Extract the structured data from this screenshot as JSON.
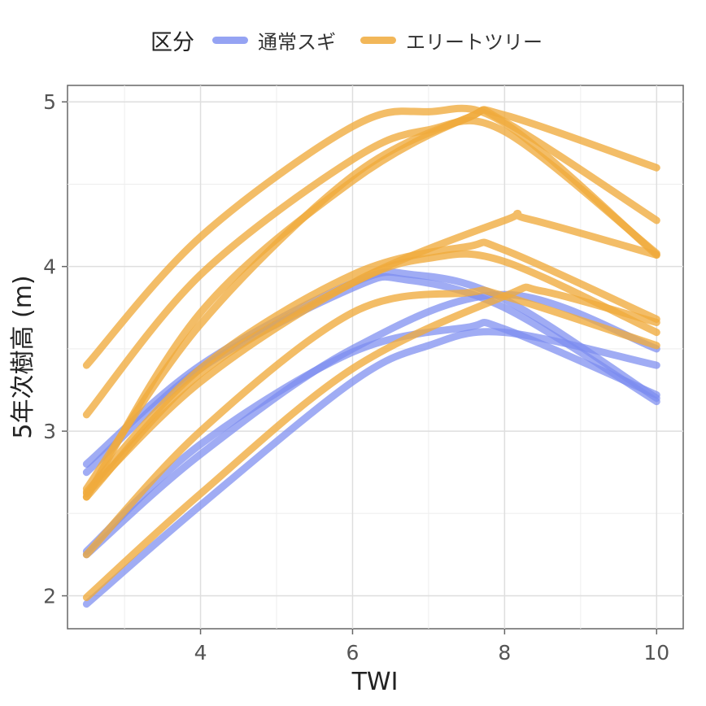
{
  "legend": {
    "title": "区分",
    "items": [
      {
        "label": "通常スギ",
        "color": "#7b8cf0"
      },
      {
        "label": "エリートツリー",
        "color": "#f0aa3c"
      }
    ]
  },
  "chart_data": {
    "type": "line",
    "xlabel": "TWI",
    "ylabel": "5年次樹高 (m)",
    "xlim": [
      2.25,
      10.35
    ],
    "ylim": [
      1.8,
      5.1
    ],
    "xticks": [
      4,
      6,
      8,
      10
    ],
    "yticks": [
      2,
      3,
      4,
      5
    ],
    "grid": true,
    "legend_position": "top",
    "series": [
      {
        "group": "通常スギ",
        "x": [
          2.5,
          4,
          6,
          7,
          8,
          10
        ],
        "y": [
          1.95,
          2.55,
          3.3,
          3.52,
          3.6,
          3.4
        ]
      },
      {
        "group": "通常スギ",
        "x": [
          2.5,
          4,
          6,
          7.5,
          8,
          10
        ],
        "y": [
          2.27,
          2.92,
          3.48,
          3.63,
          3.62,
          3.22
        ]
      },
      {
        "group": "通常スギ",
        "x": [
          2.5,
          4,
          6,
          8,
          10
        ],
        "y": [
          2.25,
          2.86,
          3.5,
          3.83,
          3.5
        ]
      },
      {
        "group": "通常スギ",
        "x": [
          2.5,
          4,
          6,
          6.8,
          8,
          10
        ],
        "y": [
          2.8,
          3.4,
          3.9,
          3.95,
          3.8,
          3.2
        ]
      },
      {
        "group": "通常スギ",
        "x": [
          2.5,
          4,
          6,
          6.7,
          8,
          10
        ],
        "y": [
          2.75,
          3.38,
          3.87,
          3.92,
          3.75,
          3.18
        ]
      },
      {
        "group": "エリートツリー",
        "x": [
          2.5,
          4,
          6,
          8,
          8.5,
          10
        ],
        "y": [
          1.99,
          2.62,
          3.38,
          3.82,
          3.85,
          3.66
        ]
      },
      {
        "group": "エリートツリー",
        "x": [
          2.5,
          4,
          6,
          7.5,
          8,
          10
        ],
        "y": [
          2.25,
          3.0,
          3.72,
          3.84,
          3.82,
          3.52
        ]
      },
      {
        "group": "エリートツリー",
        "x": [
          2.5,
          4,
          6,
          7,
          8,
          10
        ],
        "y": [
          2.6,
          3.35,
          3.9,
          4.05,
          4.03,
          3.6
        ]
      },
      {
        "group": "エリートツリー",
        "x": [
          2.5,
          4,
          6,
          7.5,
          8,
          10
        ],
        "y": [
          2.63,
          3.38,
          3.95,
          4.12,
          4.1,
          3.68
        ]
      },
      {
        "group": "エリートツリー",
        "x": [
          2.5,
          4,
          6,
          8,
          8.3,
          10
        ],
        "y": [
          2.62,
          3.3,
          3.9,
          4.28,
          4.29,
          4.07
        ]
      },
      {
        "group": "エリートツリー",
        "x": [
          2.5,
          4,
          6,
          7,
          8,
          10
        ],
        "y": [
          3.1,
          3.95,
          4.65,
          4.83,
          4.82,
          4.08
        ]
      },
      {
        "group": "エリートツリー",
        "x": [
          2.5,
          4,
          6,
          7.5,
          8,
          10
        ],
        "y": [
          2.6,
          3.72,
          4.52,
          4.9,
          4.88,
          4.28
        ]
      },
      {
        "group": "エリートツリー",
        "x": [
          2.5,
          4,
          6,
          7,
          8,
          10
        ],
        "y": [
          3.4,
          4.18,
          4.85,
          4.94,
          4.87,
          4.07
        ]
      },
      {
        "group": "エリートツリー",
        "x": [
          2.5,
          4,
          6,
          7.5,
          8,
          10
        ],
        "y": [
          2.65,
          3.65,
          4.55,
          4.9,
          4.92,
          4.6
        ]
      }
    ]
  }
}
